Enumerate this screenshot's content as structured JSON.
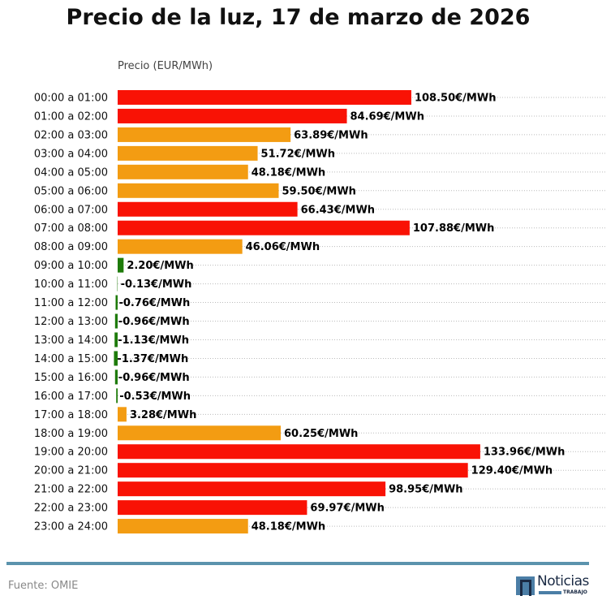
{
  "chart_data": {
    "type": "bar",
    "orientation": "horizontal",
    "title": "Precio de la luz, 17 de marzo de 2026",
    "unit_label": "Precio (EUR/MWh)",
    "value_suffix": "€/MWh",
    "grid": "dotted horizontal",
    "categories": [
      "00:00 a 01:00",
      "01:00 a 02:00",
      "02:00 a 03:00",
      "03:00 a 04:00",
      "04:00 a 05:00",
      "05:00 a 06:00",
      "06:00 a 07:00",
      "07:00 a 08:00",
      "08:00 a 09:00",
      "09:00 a 10:00",
      "10:00 a 11:00",
      "11:00 a 12:00",
      "12:00 a 13:00",
      "13:00 a 14:00",
      "14:00 a 15:00",
      "15:00 a 16:00",
      "16:00 a 17:00",
      "17:00 a 18:00",
      "18:00 a 19:00",
      "19:00 a 20:00",
      "20:00 a 21:00",
      "21:00 a 22:00",
      "22:00 a 23:00",
      "23:00 a 24:00"
    ],
    "values": [
      108.5,
      84.69,
      63.89,
      51.72,
      48.18,
      59.5,
      66.43,
      107.88,
      46.06,
      2.2,
      -0.13,
      -0.76,
      -0.96,
      -1.13,
      -1.37,
      -0.96,
      -0.53,
      3.28,
      60.25,
      133.96,
      129.4,
      98.95,
      69.97,
      48.18
    ],
    "colors": [
      "#f91205",
      "#f91205",
      "#f39c12",
      "#f39c12",
      "#f39c12",
      "#f39c12",
      "#f91205",
      "#f91205",
      "#f39c12",
      "#1e7b0a",
      "#1e7b0a",
      "#1e7b0a",
      "#1e7b0a",
      "#1e7b0a",
      "#1e7b0a",
      "#1e7b0a",
      "#1e7b0a",
      "#f39c12",
      "#f39c12",
      "#f91205",
      "#f91205",
      "#f91205",
      "#f91205",
      "#f39c12"
    ]
  },
  "footer": {
    "source": "Fuente: OMIE",
    "logo_text": "Noticias",
    "logo_sub": "TRABAJO"
  }
}
